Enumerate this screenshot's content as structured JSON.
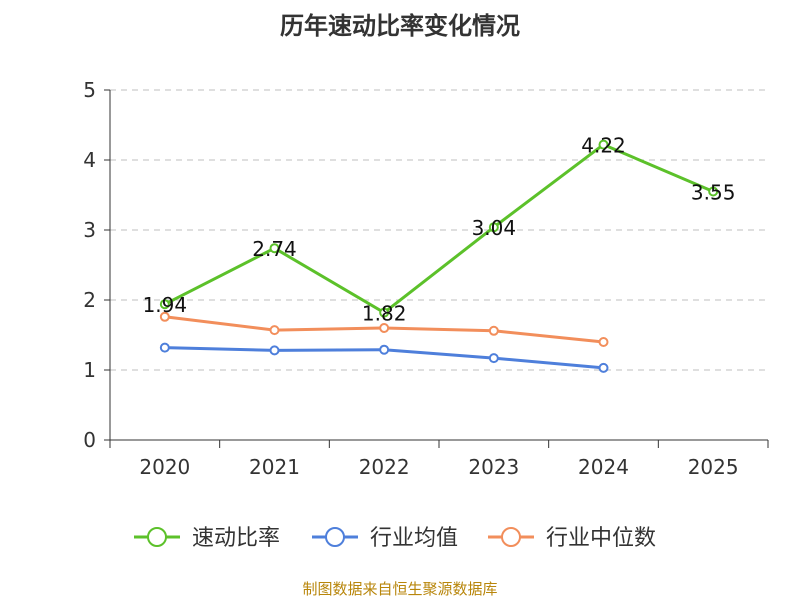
{
  "chart_data": {
    "type": "line",
    "title": "历年速动比率变化情况",
    "source": "制图数据来自恒生聚源数据库",
    "categories": [
      "2020",
      "2021",
      "2022",
      "2023",
      "2024",
      "2025"
    ],
    "ylim": [
      0,
      5
    ],
    "yticks": [
      "0",
      "1",
      "2",
      "3",
      "4",
      "5"
    ],
    "grid": true,
    "legend_position": "bottom",
    "series": [
      {
        "name": "速动比率",
        "color": "#5cc12a",
        "values": [
          1.94,
          2.74,
          1.82,
          3.04,
          4.22,
          3.55
        ],
        "labels": [
          "1.94",
          "2.74",
          "1.82",
          "3.04",
          "4.22",
          "3.55"
        ]
      },
      {
        "name": "行业均值",
        "color": "#4e7fdb",
        "values": [
          1.32,
          1.28,
          1.29,
          1.17,
          1.03,
          null
        ]
      },
      {
        "name": "行业中位数",
        "color": "#f28e5b",
        "values": [
          1.76,
          1.57,
          1.6,
          1.56,
          1.4,
          null
        ]
      }
    ]
  }
}
